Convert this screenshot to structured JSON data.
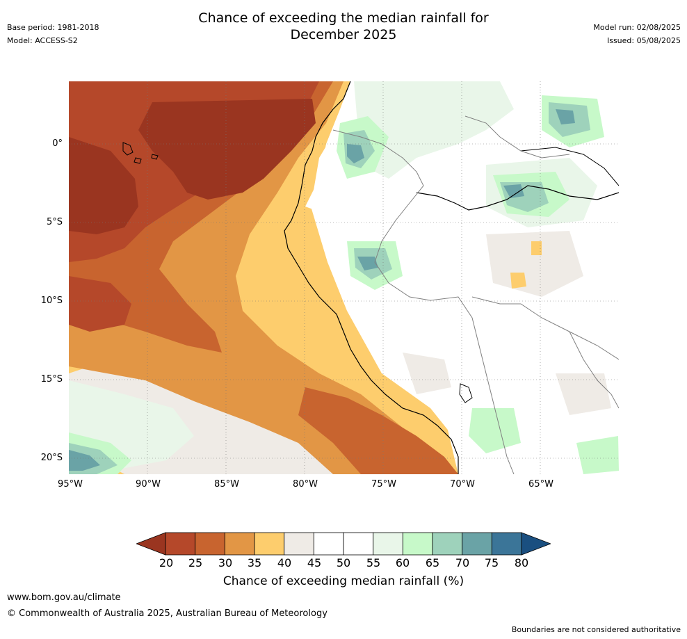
{
  "header": {
    "title_line1": "Chance of exceeding the median rainfall for",
    "title_line2": "December 2025",
    "base_period": "Base period: 1981-2018",
    "model": "Model: ACCESS-S2",
    "model_run": "Model run: 02/08/2025",
    "issued": "Issued: 05/08/2025"
  },
  "axes": {
    "lat_labels": [
      "0°",
      "5°S",
      "10°S",
      "15°S",
      "20°S"
    ],
    "lon_labels": [
      "95°W",
      "90°W",
      "85°W",
      "80°W",
      "75°W",
      "70°W",
      "65°W"
    ]
  },
  "colorbar": {
    "title": "Chance of exceeding median rainfall (%)",
    "tick_labels": [
      "20",
      "25",
      "30",
      "35",
      "40",
      "45",
      "50",
      "55",
      "60",
      "65",
      "70",
      "75",
      "80"
    ],
    "colors": [
      "#9a3520",
      "#b5482a",
      "#c8642f",
      "#e29645",
      "#fdcd6d",
      "#efebe6",
      "#ffffff",
      "#ffffff",
      "#e9f6e9",
      "#c7f9c9",
      "#9ed2bb",
      "#6aa3a6",
      "#3b7598",
      "#1a4f80"
    ]
  },
  "footer": {
    "website": "www.bom.gov.au/climate",
    "copyright": "© Commonwealth of Australia 2025, Australian Bureau of Meteorology",
    "disclaimer": "Boundaries are not considered authoritative"
  }
}
